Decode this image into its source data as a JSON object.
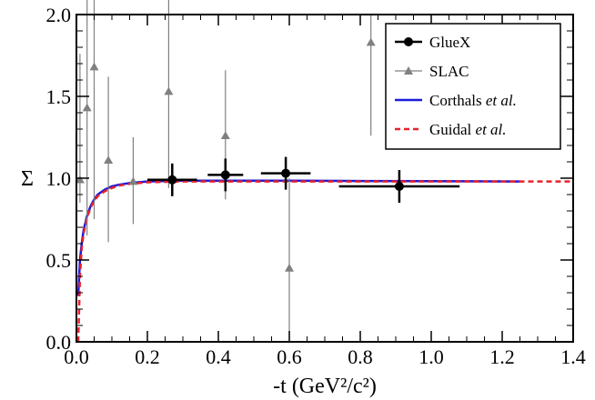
{
  "chart_data": {
    "type": "scatter",
    "xlabel": "-t (GeV²/c²)",
    "ylabel": "Σ",
    "xlim": [
      0.0,
      1.4
    ],
    "ylim": [
      0.0,
      2.0
    ],
    "xticks": [
      "0.0",
      "0.2",
      "0.4",
      "0.6",
      "0.8",
      "1.0",
      "1.2",
      "1.4"
    ],
    "yticks": [
      "0.0",
      "0.5",
      "1.0",
      "1.5",
      "2.0"
    ],
    "grid": false,
    "legend_position": "top-right",
    "series": [
      {
        "name": "GlueX",
        "kind": "points",
        "color": "#000000",
        "marker": "circle",
        "points": [
          {
            "x": 0.27,
            "y": 0.99,
            "xerr": 0.07,
            "yerr": 0.1
          },
          {
            "x": 0.42,
            "y": 1.02,
            "xerr": 0.05,
            "yerr": 0.1
          },
          {
            "x": 0.59,
            "y": 1.03,
            "xerr": 0.07,
            "yerr": 0.1
          },
          {
            "x": 0.91,
            "y": 0.95,
            "xerr": 0.17,
            "yerr": 0.1
          }
        ]
      },
      {
        "name": "SLAC",
        "kind": "points",
        "color": "#808080",
        "marker": "triangle",
        "points": [
          {
            "x": 0.01,
            "y": 0.99,
            "yerr_low": 0.14,
            "yerr_high": 0.77
          },
          {
            "x": 0.03,
            "y": 1.43,
            "yerr_low": 0.78,
            "yerr_high": 0.85
          },
          {
            "x": 0.05,
            "y": 1.68,
            "yerr_low": 0.93,
            "yerr_high": 0.7
          },
          {
            "x": 0.09,
            "y": 1.11,
            "yerr_low": 0.5,
            "yerr_high": 0.51
          },
          {
            "x": 0.16,
            "y": 0.98,
            "yerr_low": 0.26,
            "yerr_high": 0.27
          },
          {
            "x": 0.26,
            "y": 1.53,
            "yerr_low": 0.59,
            "yerr_high": 0.6
          },
          {
            "x": 0.42,
            "y": 1.26,
            "yerr_low": 0.39,
            "yerr_high": 0.4
          },
          {
            "x": 0.6,
            "y": 0.45,
            "yerr_low": 0.45,
            "yerr_high": 0.55
          },
          {
            "x": 0.83,
            "y": 1.83,
            "yerr_low": 0.57,
            "yerr_high": 0.17
          }
        ]
      },
      {
        "name": "Corthals",
        "name_suffix": "et al.",
        "kind": "line",
        "color": "#1a1adb",
        "dash": "solid",
        "x": [
          0.005,
          0.01,
          0.015,
          0.02,
          0.03,
          0.04,
          0.05,
          0.06,
          0.08,
          0.1,
          0.12,
          0.15,
          0.2,
          0.3,
          0.4,
          0.6,
          0.8,
          1.0,
          1.25
        ],
        "y": [
          0.28,
          0.5,
          0.6,
          0.68,
          0.77,
          0.83,
          0.87,
          0.9,
          0.93,
          0.95,
          0.96,
          0.97,
          0.98,
          0.985,
          0.985,
          0.985,
          0.983,
          0.982,
          0.98
        ]
      },
      {
        "name": "Guidal",
        "name_suffix": "et al.",
        "kind": "line",
        "color": "#e8212a",
        "dash": "dashed",
        "x": [
          0.005,
          0.01,
          0.015,
          0.02,
          0.03,
          0.04,
          0.05,
          0.06,
          0.08,
          0.1,
          0.12,
          0.15,
          0.2,
          0.3,
          0.4,
          0.6,
          0.8,
          1.0,
          1.25,
          1.4
        ],
        "y": [
          0.0,
          0.4,
          0.57,
          0.66,
          0.76,
          0.82,
          0.86,
          0.89,
          0.92,
          0.94,
          0.955,
          0.965,
          0.975,
          0.98,
          0.98,
          0.98,
          0.98,
          0.98,
          0.98,
          0.98
        ]
      }
    ]
  }
}
